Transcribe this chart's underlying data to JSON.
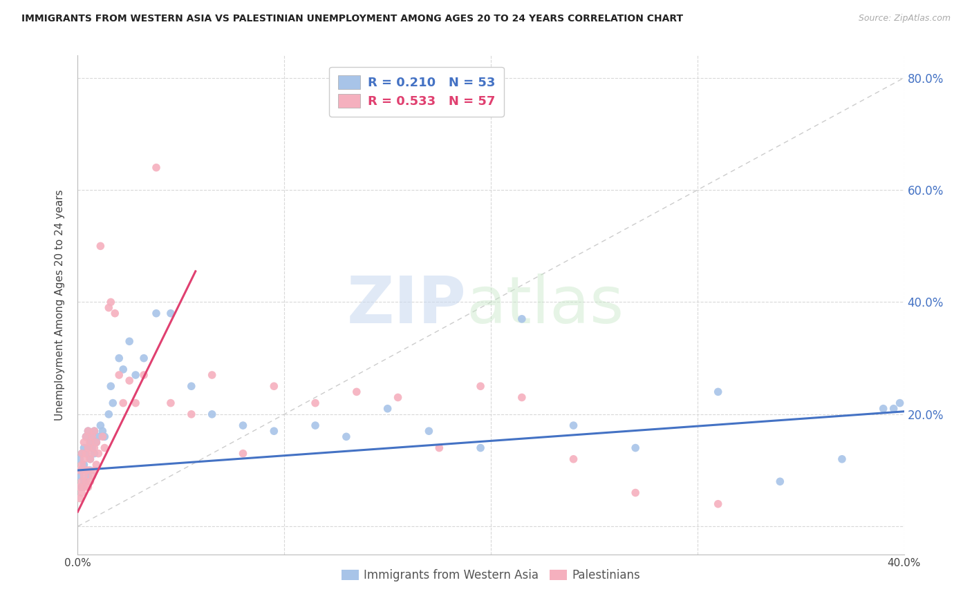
{
  "title": "IMMIGRANTS FROM WESTERN ASIA VS PALESTINIAN UNEMPLOYMENT AMONG AGES 20 TO 24 YEARS CORRELATION CHART",
  "source": "Source: ZipAtlas.com",
  "ylabel": "Unemployment Among Ages 20 to 24 years",
  "xmin": 0.0,
  "xmax": 0.4,
  "ymin": -0.05,
  "ymax": 0.84,
  "ytick_values": [
    0.0,
    0.2,
    0.4,
    0.6,
    0.8
  ],
  "ytick_right_labels": [
    "",
    "20.0%",
    "40.0%",
    "60.0%",
    "80.0%"
  ],
  "xtick_values": [
    0.0,
    0.4
  ],
  "xtick_labels": [
    "0.0%",
    "40.0%"
  ],
  "blue_R": 0.21,
  "blue_N": 53,
  "pink_R": 0.533,
  "pink_N": 57,
  "blue_dot_color": "#a8c4e8",
  "pink_dot_color": "#f5b0be",
  "blue_line_color": "#4472c4",
  "pink_line_color": "#e04070",
  "diag_color": "#cccccc",
  "grid_color": "#d8d8d8",
  "watermark_zip": "ZIP",
  "watermark_atlas": "atlas",
  "legend_label_blue": "Immigrants from Western Asia",
  "legend_label_pink": "Palestinians",
  "blue_scatter_x": [
    0.001,
    0.001,
    0.002,
    0.002,
    0.002,
    0.003,
    0.003,
    0.003,
    0.004,
    0.004,
    0.005,
    0.005,
    0.005,
    0.006,
    0.006,
    0.006,
    0.007,
    0.007,
    0.008,
    0.008,
    0.009,
    0.01,
    0.011,
    0.012,
    0.013,
    0.015,
    0.016,
    0.017,
    0.02,
    0.022,
    0.025,
    0.028,
    0.032,
    0.038,
    0.045,
    0.055,
    0.065,
    0.08,
    0.095,
    0.115,
    0.13,
    0.15,
    0.17,
    0.195,
    0.215,
    0.24,
    0.27,
    0.31,
    0.34,
    0.37,
    0.39,
    0.398,
    0.395
  ],
  "blue_scatter_y": [
    0.09,
    0.12,
    0.07,
    0.13,
    0.1,
    0.08,
    0.14,
    0.11,
    0.13,
    0.16,
    0.09,
    0.14,
    0.17,
    0.1,
    0.15,
    0.12,
    0.14,
    0.16,
    0.13,
    0.17,
    0.15,
    0.16,
    0.18,
    0.17,
    0.16,
    0.2,
    0.25,
    0.22,
    0.3,
    0.28,
    0.33,
    0.27,
    0.3,
    0.38,
    0.38,
    0.25,
    0.2,
    0.18,
    0.17,
    0.18,
    0.16,
    0.21,
    0.17,
    0.14,
    0.37,
    0.18,
    0.14,
    0.24,
    0.08,
    0.12,
    0.21,
    0.22,
    0.21
  ],
  "pink_scatter_x": [
    0.001,
    0.001,
    0.001,
    0.002,
    0.002,
    0.002,
    0.002,
    0.003,
    0.003,
    0.003,
    0.003,
    0.004,
    0.004,
    0.004,
    0.004,
    0.005,
    0.005,
    0.005,
    0.005,
    0.006,
    0.006,
    0.006,
    0.007,
    0.007,
    0.007,
    0.008,
    0.008,
    0.008,
    0.009,
    0.009,
    0.01,
    0.011,
    0.012,
    0.013,
    0.015,
    0.016,
    0.018,
    0.02,
    0.022,
    0.025,
    0.028,
    0.032,
    0.038,
    0.045,
    0.055,
    0.065,
    0.08,
    0.095,
    0.115,
    0.135,
    0.155,
    0.175,
    0.195,
    0.215,
    0.24,
    0.27,
    0.31
  ],
  "pink_scatter_y": [
    0.05,
    0.07,
    0.1,
    0.06,
    0.08,
    0.11,
    0.13,
    0.07,
    0.09,
    0.12,
    0.15,
    0.08,
    0.1,
    0.13,
    0.16,
    0.07,
    0.1,
    0.14,
    0.17,
    0.08,
    0.12,
    0.15,
    0.09,
    0.13,
    0.16,
    0.1,
    0.14,
    0.17,
    0.11,
    0.15,
    0.13,
    0.5,
    0.16,
    0.14,
    0.39,
    0.4,
    0.38,
    0.27,
    0.22,
    0.26,
    0.22,
    0.27,
    0.64,
    0.22,
    0.2,
    0.27,
    0.13,
    0.25,
    0.22,
    0.24,
    0.23,
    0.14,
    0.25,
    0.23,
    0.12,
    0.06,
    0.04
  ],
  "blue_line_x0": 0.0,
  "blue_line_x1": 0.4,
  "blue_line_y0": 0.1,
  "blue_line_y1": 0.205,
  "pink_line_x0": 0.0,
  "pink_line_x1": 0.057,
  "pink_line_y0": 0.026,
  "pink_line_y1": 0.455
}
